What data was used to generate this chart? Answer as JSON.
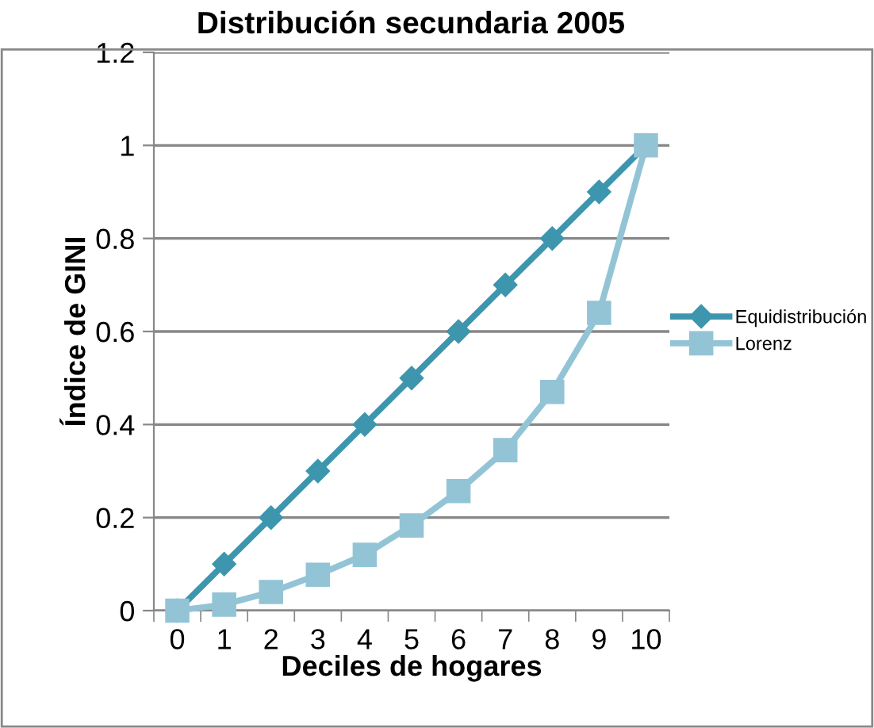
{
  "chart_data": {
    "type": "line",
    "title": "Distribución secundaria 2005",
    "xlabel": "Deciles de hogares",
    "ylabel": "Índice de GINI",
    "categories": [
      "0",
      "1",
      "2",
      "3",
      "4",
      "5",
      "6",
      "7",
      "8",
      "9",
      "10"
    ],
    "series": [
      {
        "name": "Equidistribución",
        "color": "#3d96ae",
        "marker": "diamond",
        "values": [
          0,
          0.1,
          0.2,
          0.3,
          0.4,
          0.5,
          0.6,
          0.7,
          0.8,
          0.9,
          1
        ]
      },
      {
        "name": "Lorenz",
        "color": "#93c4d6",
        "marker": "square",
        "values": [
          0,
          0.013,
          0.04,
          0.077,
          0.12,
          0.183,
          0.257,
          0.345,
          0.47,
          0.64,
          1
        ]
      }
    ],
    "ylim": [
      0,
      1.2
    ],
    "yticks": [
      0,
      0.2,
      0.4,
      0.6,
      0.8,
      1,
      1.2
    ],
    "grid": "y",
    "legend": "right"
  }
}
